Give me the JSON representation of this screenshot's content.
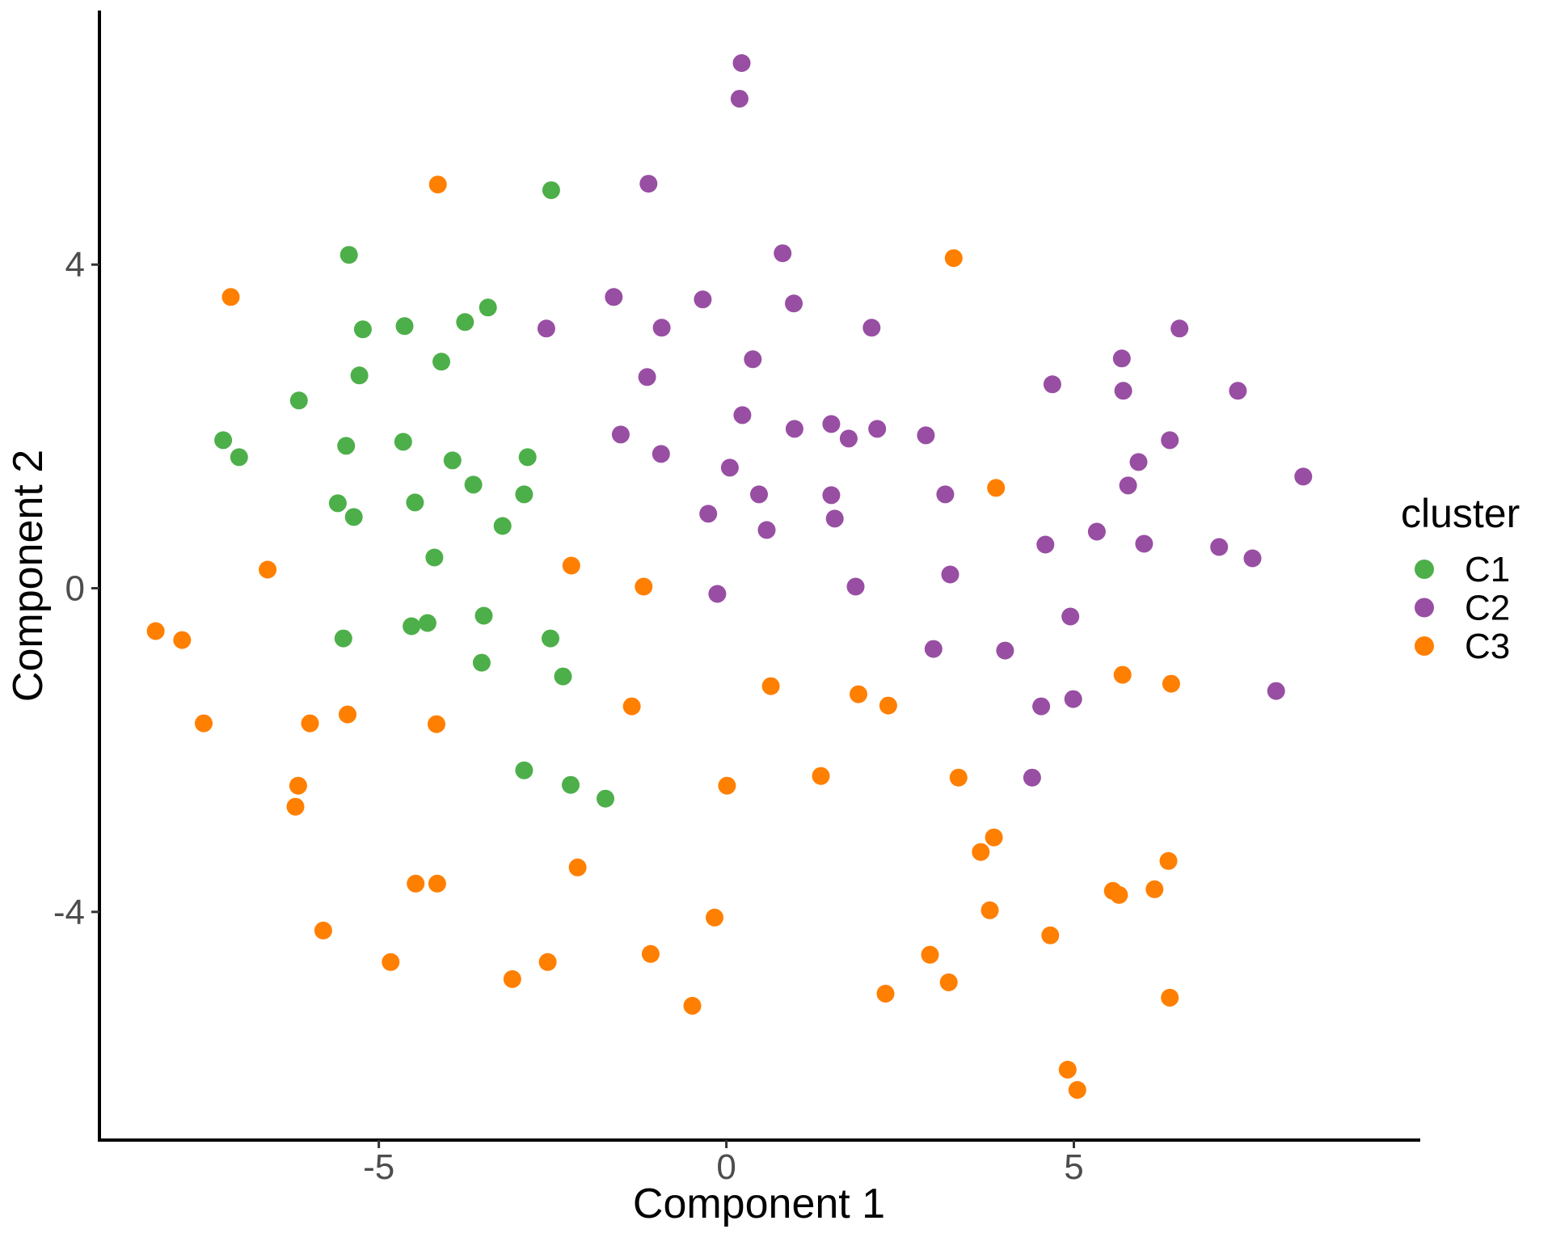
{
  "figure": {
    "background": "#FFFFFF",
    "axis_line_color": "#000000",
    "tick_color": "#333333",
    "tick_label_color": "#4D4D4D"
  },
  "chart_data": {
    "type": "scatter",
    "title": "",
    "xlabel": "Component 1",
    "ylabel": "Component 2",
    "xlim": [
      -9.02,
      9.96
    ],
    "ylim": [
      -6.82,
      7.12
    ],
    "x_ticks": [
      -5,
      0,
      5
    ],
    "y_ticks": [
      4,
      0,
      -4
    ],
    "grid": false,
    "point_radius_px": 11,
    "legend": {
      "title": "cluster",
      "position": "right",
      "items": [
        "C1",
        "C2",
        "C3"
      ]
    },
    "series": [
      {
        "name": "C1",
        "color": "#4DAF4A",
        "points": [
          [
            -5.43,
            4.12
          ],
          [
            -2.52,
            4.92
          ],
          [
            -5.23,
            3.2
          ],
          [
            -4.63,
            3.24
          ],
          [
            -3.76,
            3.29
          ],
          [
            -3.43,
            3.47
          ],
          [
            -4.1,
            2.8
          ],
          [
            -5.28,
            2.63
          ],
          [
            -6.15,
            2.32
          ],
          [
            -7.24,
            1.83
          ],
          [
            -7.01,
            1.62
          ],
          [
            -5.47,
            1.76
          ],
          [
            -4.65,
            1.81
          ],
          [
            -3.94,
            1.58
          ],
          [
            -3.64,
            1.28
          ],
          [
            -2.86,
            1.62
          ],
          [
            -5.59,
            1.05
          ],
          [
            -5.36,
            0.88
          ],
          [
            -4.48,
            1.06
          ],
          [
            -2.91,
            1.16
          ],
          [
            -3.22,
            0.77
          ],
          [
            -4.2,
            0.38
          ],
          [
            -5.51,
            -0.62
          ],
          [
            -4.53,
            -0.47
          ],
          [
            -4.3,
            -0.43
          ],
          [
            -3.49,
            -0.34
          ],
          [
            -3.52,
            -0.92
          ],
          [
            -2.53,
            -0.62
          ],
          [
            -2.35,
            -1.09
          ],
          [
            -2.91,
            -2.25
          ],
          [
            -2.24,
            -2.43
          ],
          [
            -1.74,
            -2.6
          ]
        ]
      },
      {
        "name": "C2",
        "color": "#984EA3",
        "points": [
          [
            0.22,
            6.49
          ],
          [
            0.19,
            6.05
          ],
          [
            -1.12,
            5.0
          ],
          [
            0.81,
            4.14
          ],
          [
            -1.62,
            3.6
          ],
          [
            -0.34,
            3.57
          ],
          [
            0.97,
            3.52
          ],
          [
            -2.59,
            3.21
          ],
          [
            -0.93,
            3.22
          ],
          [
            2.09,
            3.22
          ],
          [
            0.38,
            2.83
          ],
          [
            -1.14,
            2.61
          ],
          [
            6.52,
            3.21
          ],
          [
            5.69,
            2.84
          ],
          [
            4.69,
            2.52
          ],
          [
            5.71,
            2.44
          ],
          [
            7.36,
            2.44
          ],
          [
            0.23,
            2.14
          ],
          [
            -1.52,
            1.9
          ],
          [
            0.98,
            1.97
          ],
          [
            1.51,
            2.03
          ],
          [
            1.76,
            1.85
          ],
          [
            2.17,
            1.97
          ],
          [
            2.87,
            1.89
          ],
          [
            -0.94,
            1.66
          ],
          [
            0.05,
            1.49
          ],
          [
            0.47,
            1.16
          ],
          [
            1.51,
            1.15
          ],
          [
            3.15,
            1.16
          ],
          [
            -0.26,
            0.92
          ],
          [
            1.56,
            0.86
          ],
          [
            0.58,
            0.72
          ],
          [
            -0.13,
            -0.07
          ],
          [
            1.86,
            0.02
          ],
          [
            3.22,
            0.17
          ],
          [
            6.38,
            1.83
          ],
          [
            5.93,
            1.56
          ],
          [
            5.78,
            1.27
          ],
          [
            8.3,
            1.38
          ],
          [
            5.33,
            0.7
          ],
          [
            4.59,
            0.54
          ],
          [
            6.01,
            0.55
          ],
          [
            7.09,
            0.51
          ],
          [
            7.57,
            0.37
          ],
          [
            4.95,
            -0.35
          ],
          [
            2.98,
            -0.75
          ],
          [
            4.01,
            -0.77
          ],
          [
            4.99,
            -1.37
          ],
          [
            7.91,
            -1.27
          ],
          [
            4.53,
            -1.46
          ],
          [
            4.4,
            -2.34
          ]
        ]
      },
      {
        "name": "C3",
        "color": "#FF7F00",
        "points": [
          [
            -4.15,
            4.99
          ],
          [
            -7.13,
            3.6
          ],
          [
            3.27,
            4.08
          ],
          [
            -6.6,
            0.23
          ],
          [
            -8.21,
            -0.53
          ],
          [
            -7.83,
            -0.64
          ],
          [
            -7.52,
            -1.67
          ],
          [
            -5.99,
            -1.67
          ],
          [
            -5.45,
            -1.56
          ],
          [
            -4.17,
            -1.68
          ],
          [
            -2.23,
            0.28
          ],
          [
            -1.19,
            0.02
          ],
          [
            0.64,
            -1.21
          ],
          [
            1.9,
            -1.31
          ],
          [
            2.33,
            -1.45
          ],
          [
            -1.36,
            -1.46
          ],
          [
            3.88,
            1.24
          ],
          [
            5.7,
            -1.07
          ],
          [
            6.4,
            -1.18
          ],
          [
            -6.16,
            -2.44
          ],
          [
            -6.2,
            -2.7
          ],
          [
            -4.47,
            -3.65
          ],
          [
            -4.16,
            -3.65
          ],
          [
            -5.8,
            -4.23
          ],
          [
            -4.83,
            -4.62
          ],
          [
            -3.08,
            -4.83
          ],
          [
            0.01,
            -2.44
          ],
          [
            1.36,
            -2.32
          ],
          [
            -2.14,
            -3.45
          ],
          [
            -0.17,
            -4.07
          ],
          [
            -1.09,
            -4.52
          ],
          [
            -2.57,
            -4.62
          ],
          [
            -0.49,
            -5.16
          ],
          [
            2.29,
            -5.01
          ],
          [
            2.93,
            -4.53
          ],
          [
            3.2,
            -4.87
          ],
          [
            3.34,
            -2.34
          ],
          [
            3.85,
            -3.08
          ],
          [
            3.66,
            -3.26
          ],
          [
            6.36,
            -3.37
          ],
          [
            5.56,
            -3.74
          ],
          [
            5.65,
            -3.79
          ],
          [
            6.16,
            -3.72
          ],
          [
            3.79,
            -3.98
          ],
          [
            4.66,
            -4.29
          ],
          [
            6.38,
            -5.06
          ],
          [
            4.91,
            -5.95
          ],
          [
            5.05,
            -6.2
          ]
        ]
      }
    ]
  }
}
